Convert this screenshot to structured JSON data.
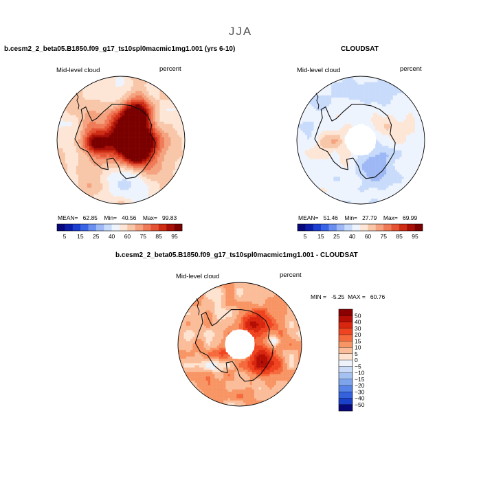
{
  "figure": {
    "season": "JJA",
    "top_left": {
      "title": "b.cesm2_2_beta05.B1850.f09_g17_ts10spl0macmic1mg1.001 (yrs 6-10)",
      "field": "Mid-level cloud",
      "units": "percent",
      "stats": {
        "mean_label": "MEAN=",
        "mean": "62.85",
        "min_label": "Min=",
        "min": "40.56",
        "max_label": "Max=",
        "max": "99.83"
      }
    },
    "top_right": {
      "title": "CLOUDSAT",
      "field": "Mid-level cloud",
      "units": "percent",
      "stats": {
        "mean_label": "MEAN=",
        "mean": "51.46",
        "min_label": "Min=",
        "min": "27.79",
        "max_label": "Max=",
        "max": "69.99"
      }
    },
    "bottom": {
      "title": "b.cesm2_2_beta05.B1850.f09_g17_ts10spl0macmic1mg1.001 - CLOUDSAT",
      "field": "Mid-level cloud",
      "units": "percent",
      "stats_text": "MIN =   -5.25  MAX =   60.76"
    }
  },
  "chart_data": [
    {
      "type": "heatmap",
      "projection": "south-polar-stereographic",
      "title": "b.cesm2_2_beta05.B1850.f09_g17_ts10spl0macmic1mg1.001 (yrs 6-10)",
      "field": "Mid-level cloud",
      "units": "percent",
      "mean": 62.85,
      "min": 40.56,
      "max": 99.83,
      "colorbar": {
        "orientation": "horizontal",
        "tick_labels": [
          "5",
          "15",
          "25",
          "40",
          "60",
          "75",
          "85",
          "95"
        ],
        "levels": [
          5,
          10,
          15,
          20,
          25,
          30,
          40,
          50,
          60,
          65,
          70,
          75,
          80,
          85,
          90,
          95
        ],
        "colors": [
          "#08087a",
          "#0c1ea8",
          "#1c3fd0",
          "#3a64e6",
          "#6a8fef",
          "#9db8f5",
          "#c8dbfb",
          "#eef4fd",
          "#fde6d6",
          "#f8c6a8",
          "#f4a27f",
          "#ef7a58",
          "#e45334",
          "#cd2d14",
          "#a80f07",
          "#7a0000"
        ]
      }
    },
    {
      "type": "heatmap",
      "projection": "south-polar-stereographic",
      "title": "CLOUDSAT",
      "field": "Mid-level cloud",
      "units": "percent",
      "mean": 51.46,
      "min": 27.79,
      "max": 69.99,
      "colorbar": {
        "orientation": "horizontal",
        "tick_labels": [
          "5",
          "15",
          "25",
          "40",
          "60",
          "75",
          "85",
          "95"
        ],
        "levels": [
          5,
          10,
          15,
          20,
          25,
          30,
          40,
          50,
          60,
          65,
          70,
          75,
          80,
          85,
          90,
          95
        ],
        "colors": [
          "#08087a",
          "#0c1ea8",
          "#1c3fd0",
          "#3a64e6",
          "#6a8fef",
          "#9db8f5",
          "#c8dbfb",
          "#eef4fd",
          "#fde6d6",
          "#f8c6a8",
          "#f4a27f",
          "#ef7a58",
          "#e45334",
          "#cd2d14",
          "#a80f07",
          "#7a0000"
        ]
      }
    },
    {
      "type": "heatmap",
      "projection": "south-polar-stereographic",
      "title": "b.cesm2_2_beta05.B1850.f09_g17_ts10spl0macmic1mg1.001 - CLOUDSAT",
      "field": "Mid-level cloud",
      "units": "percent",
      "min": -5.25,
      "max": 60.76,
      "colorbar": {
        "orientation": "vertical",
        "tick_labels": [
          "50",
          "40",
          "30",
          "20",
          "15",
          "10",
          "5",
          "0",
          "−5",
          "−10",
          "−15",
          "−20",
          "−30",
          "−40",
          "−50"
        ],
        "colors": [
          "#8b0000",
          "#b50f05",
          "#d8260f",
          "#ef4420",
          "#f56a3d",
          "#f89565",
          "#fbbd99",
          "#fde3d0",
          "#eef3fb",
          "#c9dbf6",
          "#a4c1f1",
          "#7ea4ec",
          "#5784e6",
          "#3362dc",
          "#1a3fc9",
          "#08087a"
        ]
      }
    }
  ]
}
